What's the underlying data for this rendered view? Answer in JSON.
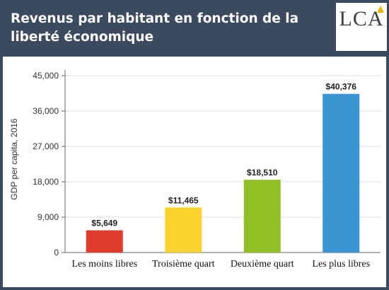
{
  "header": {
    "title": "Revenus par habitant en fonction de la liberté économique",
    "logo_text": "LCA"
  },
  "colors": {
    "background": "#3b4a5e",
    "grid": "#d6dde4"
  },
  "chart_data": {
    "type": "bar",
    "title": "Revenus par habitant en fonction de la liberté économique",
    "ylabel": "GDP per capita, 2016",
    "xlabel": "",
    "ylim": [
      0,
      45000
    ],
    "yticks": [
      {
        "value": 0,
        "label": "0"
      },
      {
        "value": 9000,
        "label": "9,000"
      },
      {
        "value": 18000,
        "label": "18,000"
      },
      {
        "value": 27000,
        "label": "27,000"
      },
      {
        "value": 36000,
        "label": "36,000"
      },
      {
        "value": 45000,
        "label": "45,000"
      }
    ],
    "grid": true,
    "categories": [
      "Les moins libres",
      "Troisième quart",
      "Deuxième quart",
      "Les plus libres"
    ],
    "values": [
      5649,
      11465,
      18510,
      40376
    ],
    "data_labels": [
      "$5,649",
      "$11,465",
      "$18,510",
      "$40,376"
    ],
    "bar_colors": [
      "#e03c2e",
      "#fbd32e",
      "#92bf26",
      "#3a95d3"
    ]
  }
}
